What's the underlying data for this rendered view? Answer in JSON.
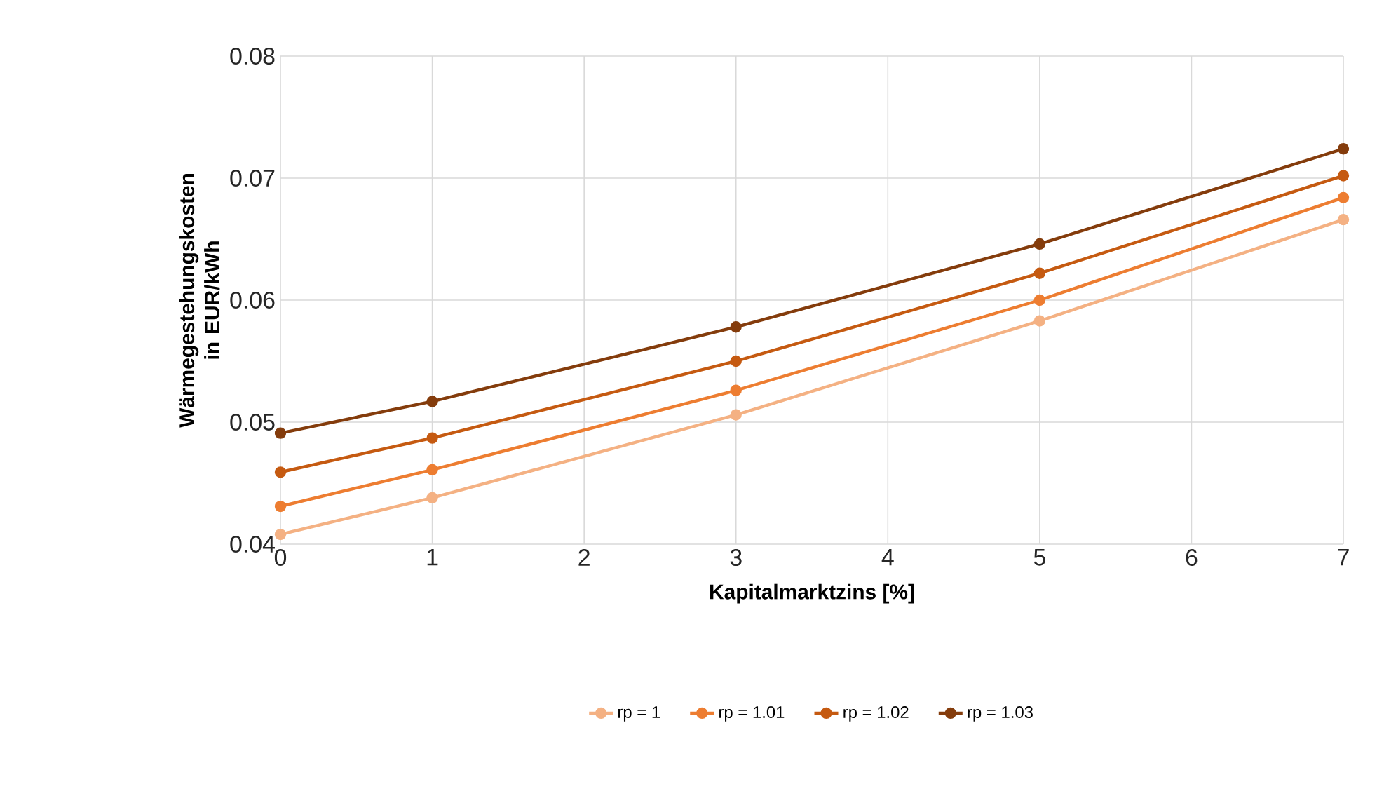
{
  "chart_data": {
    "type": "line",
    "xlabel": "Kapitalmarktzins [%]",
    "ylabel": "Wärmegestehungskosten in EUR/kWh",
    "x": [
      0,
      1,
      3,
      5,
      7
    ],
    "series": [
      {
        "name": "rp = 1",
        "color": "#f4b183",
        "values": [
          0.0408,
          0.0438,
          0.0506,
          0.0583,
          0.0666
        ]
      },
      {
        "name": "rp = 1.01",
        "color": "#ed7d31",
        "values": [
          0.0431,
          0.0461,
          0.0526,
          0.06,
          0.0684
        ]
      },
      {
        "name": "rp = 1.02",
        "color": "#c55a11",
        "values": [
          0.0459,
          0.0487,
          0.055,
          0.0622,
          0.0702
        ]
      },
      {
        "name": "rp = 1.03",
        "color": "#843c0c",
        "values": [
          0.0491,
          0.0517,
          0.0578,
          0.0646,
          0.0724
        ]
      }
    ],
    "xlim": [
      0,
      7
    ],
    "xticks": [
      0,
      1,
      2,
      3,
      4,
      5,
      6,
      7
    ],
    "ylim": [
      0.04,
      0.08
    ],
    "yticks": [
      0.04,
      0.05,
      0.06,
      0.07,
      0.08
    ],
    "grid": true,
    "legend": "bottom",
    "marker": "circle",
    "line_style": "solid"
  }
}
